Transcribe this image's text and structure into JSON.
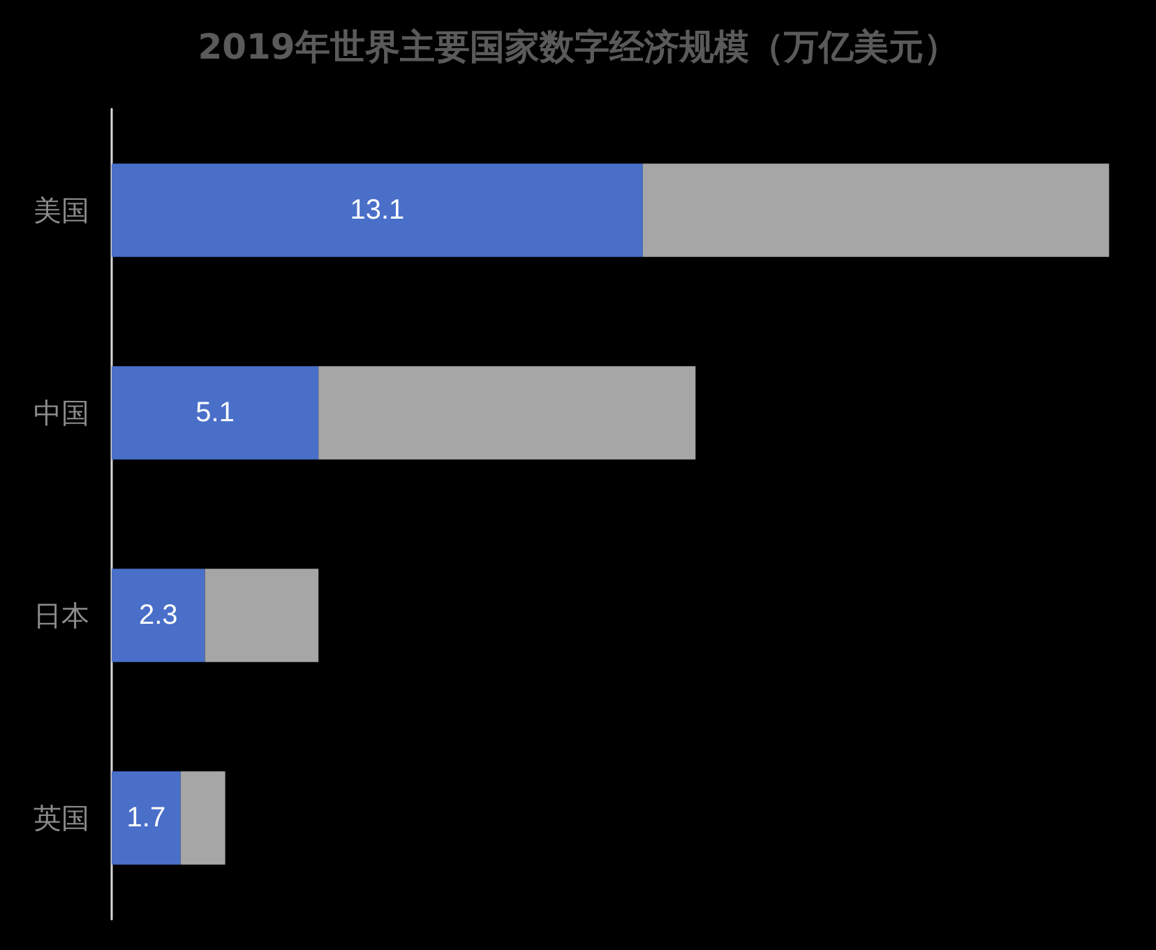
{
  "chart_data": {
    "type": "bar",
    "title": "2019年世界主要国家数字经济规模（万亿美元）",
    "orientation": "horizontal",
    "stacked": true,
    "categories": [
      "美国",
      "中国",
      "日本",
      "英国"
    ],
    "series": [
      {
        "color": "#4a6fc9",
        "values": [
          13.1,
          5.1,
          2.3,
          1.7
        ],
        "value_labels": [
          "13.1",
          "5.1",
          "2.3",
          "1.7"
        ]
      },
      {
        "color": "#a6a6a6",
        "values": [
          11.5,
          9.3,
          2.8,
          1.1
        ]
      }
    ],
    "tick_labels": "y"
  }
}
